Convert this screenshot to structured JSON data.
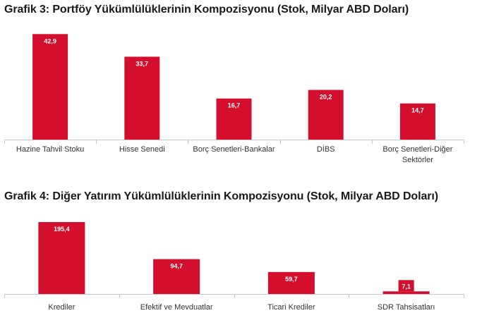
{
  "chart_data": [
    {
      "type": "bar",
      "title": "Grafik 3: Portföy Yükümlülüklerinin Kompozisyonu (Stok, Milyar ABD Doları)",
      "categories": [
        "Hazine Tahvil Stoku",
        "Hisse Senedi",
        "Borç Senetleri-Bankalar",
        "DİBS",
        "Borç Senetleri-Diğer Sektörler"
      ],
      "category_lines": [
        [
          "Hazine Tahvil Stoku"
        ],
        [
          "Hisse Senedi"
        ],
        [
          "Borç Senetleri-Bankalar"
        ],
        [
          "DİBS"
        ],
        [
          "Borç Senetleri-Diğer",
          "Sektörler"
        ]
      ],
      "values": [
        42.9,
        33.7,
        16.7,
        20.2,
        14.7
      ],
      "value_labels": [
        "42,9",
        "33,7",
        "16,7",
        "20,2",
        "14,7"
      ],
      "ylim": [
        0,
        45
      ],
      "grid": false,
      "color": "#d40f2e"
    },
    {
      "type": "bar",
      "title": "Grafik 4: Diğer Yatırım Yükümlülüklerinin Kompozisyonu (Stok, Milyar ABD Doları)",
      "categories": [
        "Krediler",
        "Efektif ve Mevduatlar",
        "Ticari Krediler",
        "SDR Tahsisatları"
      ],
      "category_lines": [
        [
          "Krediler"
        ],
        [
          "Efektif ve Mevduatlar"
        ],
        [
          "Ticari Krediler"
        ],
        [
          "SDR Tahsisatları"
        ]
      ],
      "values": [
        195.4,
        94.7,
        59.7,
        7.1
      ],
      "value_labels": [
        "195,4",
        "94,7",
        "59,7",
        "7,1"
      ],
      "ylim": [
        0,
        205
      ],
      "grid": false,
      "color": "#d40f2e"
    }
  ]
}
